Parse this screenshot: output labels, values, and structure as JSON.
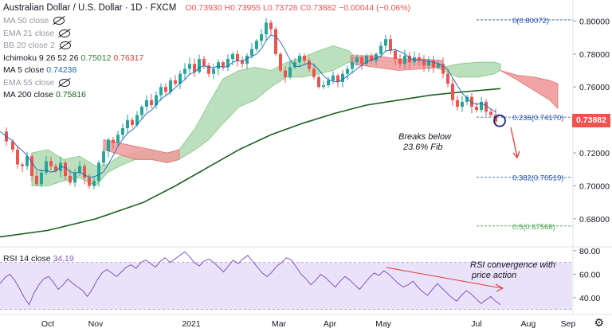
{
  "header": {
    "title": "Australian Dollar / U.S. Dollar · 1D · FXCM",
    "ohlc": "O0.73930 H0.73955 L0.73726 C0.73882 −0.00044 (−0.06%)"
  },
  "legend": [
    {
      "label": "MA 50 close",
      "value": "",
      "muted": true,
      "hidden": true
    },
    {
      "label": "EMA 21 close",
      "value": "",
      "muted": true,
      "hidden": true
    },
    {
      "label": "BB 20 close 2",
      "value": "",
      "muted": true,
      "hidden": true
    },
    {
      "label": "Ichimoku 9 26 52 26",
      "value": "0.75012",
      "value2": "0.76317",
      "muted": false,
      "hidden": false
    },
    {
      "label": "MA 5 close",
      "value": "0.74238",
      "muted": false,
      "hidden": false
    },
    {
      "label": "EMA 55 close",
      "value": "",
      "muted": true,
      "hidden": true
    },
    {
      "label": "MA 200 close",
      "value": "0.75816",
      "muted": false,
      "hidden": false
    }
  ],
  "price_tag": "0.73882",
  "fib": [
    {
      "label": "0(0.80072)",
      "value": 0.80072
    },
    {
      "label": "0.236(0.74170)",
      "value": 0.7417
    },
    {
      "label": "0.382(0.70519)",
      "value": 0.70519
    },
    {
      "label": "0.5(0.67568)",
      "value": 0.67568
    }
  ],
  "annotations": {
    "breaks": [
      "Breaks below",
      "23.6% Fib"
    ],
    "rsi_note": [
      "RSI convergence with",
      "price action"
    ]
  },
  "rsi_label": {
    "name": "RSI 14 close",
    "value": "34.19"
  },
  "icons": {
    "eye": "eye-off-icon",
    "settings": "gear-icon"
  },
  "colors": {
    "up": "#26a69a",
    "down": "#ef5350",
    "ma200": "#1b5e20",
    "cloud_bull": "#a5d6a7",
    "cloud_bear": "#ef9a9a",
    "rsi": "#7e57c2",
    "rsi_band": "#e1d5f7"
  },
  "chart_data": [
    {
      "type": "candlestick",
      "title": "Australian Dollar / U.S. Dollar · 1D · FXCM",
      "x_ticks": [
        "Oct",
        "Nov",
        "2021",
        "Mar",
        "Apr",
        "May",
        "Jul",
        "Aug",
        "Sep"
      ],
      "y_ticks": [
        0.68,
        0.7,
        0.72,
        0.74,
        0.76,
        0.78,
        0.8
      ],
      "y_tick_labels": [
        "0.68000",
        "0.70000",
        "0.72000",
        "0.74000",
        "0.76000",
        "0.78000",
        "0.80000"
      ],
      "ylim": [
        0.664,
        0.806
      ],
      "close_path": [
        [
          0,
          0.733
        ],
        [
          8,
          0.727
        ],
        [
          16,
          0.722
        ],
        [
          22,
          0.713
        ],
        [
          28,
          0.712
        ],
        [
          34,
          0.718
        ],
        [
          40,
          0.706
        ],
        [
          46,
          0.701
        ],
        [
          52,
          0.708
        ],
        [
          58,
          0.715
        ],
        [
          64,
          0.712
        ],
        [
          70,
          0.709
        ],
        [
          76,
          0.714
        ],
        [
          82,
          0.706
        ],
        [
          88,
          0.702
        ],
        [
          94,
          0.708
        ],
        [
          100,
          0.712
        ],
        [
          106,
          0.705
        ],
        [
          112,
          0.7
        ],
        [
          118,
          0.703
        ],
        [
          124,
          0.714
        ],
        [
          130,
          0.721
        ],
        [
          136,
          0.728
        ],
        [
          142,
          0.726
        ],
        [
          148,
          0.731
        ],
        [
          154,
          0.735
        ],
        [
          160,
          0.74
        ],
        [
          166,
          0.737
        ],
        [
          172,
          0.743
        ],
        [
          178,
          0.748
        ],
        [
          184,
          0.752
        ],
        [
          190,
          0.749
        ],
        [
          196,
          0.755
        ],
        [
          202,
          0.76
        ],
        [
          208,
          0.757
        ],
        [
          214,
          0.764
        ],
        [
          220,
          0.762
        ],
        [
          226,
          0.768
        ],
        [
          232,
          0.771
        ],
        [
          238,
          0.774
        ],
        [
          244,
          0.769
        ],
        [
          250,
          0.777
        ],
        [
          256,
          0.773
        ],
        [
          262,
          0.768
        ],
        [
          268,
          0.771
        ],
        [
          274,
          0.775
        ],
        [
          280,
          0.772
        ],
        [
          286,
          0.777
        ],
        [
          292,
          0.78
        ],
        [
          298,
          0.776
        ],
        [
          304,
          0.774
        ],
        [
          310,
          0.779
        ],
        [
          316,
          0.783
        ],
        [
          322,
          0.788
        ],
        [
          328,
          0.792
        ],
        [
          334,
          0.799
        ],
        [
          340,
          0.795
        ],
        [
          346,
          0.78
        ],
        [
          352,
          0.77
        ],
        [
          358,
          0.766
        ],
        [
          364,
          0.772
        ],
        [
          370,
          0.775
        ],
        [
          376,
          0.779
        ],
        [
          382,
          0.776
        ],
        [
          388,
          0.771
        ],
        [
          394,
          0.766
        ],
        [
          400,
          0.76
        ],
        [
          406,
          0.761
        ],
        [
          412,
          0.764
        ],
        [
          418,
          0.767
        ],
        [
          424,
          0.763
        ],
        [
          430,
          0.768
        ],
        [
          436,
          0.771
        ],
        [
          442,
          0.775
        ],
        [
          448,
          0.778
        ],
        [
          454,
          0.774
        ],
        [
          460,
          0.779
        ],
        [
          466,
          0.776
        ],
        [
          472,
          0.78
        ],
        [
          478,
          0.785
        ],
        [
          484,
          0.789
        ],
        [
          490,
          0.782
        ],
        [
          496,
          0.777
        ],
        [
          502,
          0.774
        ],
        [
          508,
          0.779
        ],
        [
          514,
          0.775
        ],
        [
          520,
          0.778
        ],
        [
          526,
          0.776
        ],
        [
          532,
          0.773
        ],
        [
          538,
          0.776
        ],
        [
          544,
          0.772
        ],
        [
          550,
          0.774
        ],
        [
          556,
          0.768
        ],
        [
          562,
          0.762
        ],
        [
          568,
          0.752
        ],
        [
          574,
          0.748
        ],
        [
          580,
          0.751
        ],
        [
          586,
          0.754
        ],
        [
          592,
          0.748
        ],
        [
          598,
          0.746
        ],
        [
          604,
          0.751
        ],
        [
          610,
          0.745
        ],
        [
          616,
          0.743
        ],
        [
          622,
          0.739
        ]
      ],
      "ma200_path": [
        [
          0,
          0.669
        ],
        [
          60,
          0.673
        ],
        [
          120,
          0.68
        ],
        [
          180,
          0.69
        ],
        [
          220,
          0.7
        ],
        [
          260,
          0.711
        ],
        [
          300,
          0.722
        ],
        [
          340,
          0.731
        ],
        [
          380,
          0.738
        ],
        [
          420,
          0.744
        ],
        [
          460,
          0.749
        ],
        [
          500,
          0.752
        ],
        [
          540,
          0.755
        ],
        [
          580,
          0.757
        ],
        [
          628,
          0.759
        ]
      ],
      "cloud_bull": [
        [
          0,
          0.705
        ],
        [
          10,
          0.71
        ],
        [
          20,
          0.716
        ],
        [
          30,
          0.703
        ],
        [
          40,
          0.7
        ],
        [
          50,
          0.703
        ],
        [
          60,
          0.712
        ]
      ],
      "cloud_bull_a": [
        [
          0,
          0.73
        ],
        [
          10,
          0.728
        ],
        [
          20,
          0.725
        ],
        [
          30,
          0.722
        ],
        [
          40,
          0.719
        ],
        [
          50,
          0.715
        ],
        [
          60,
          0.716
        ]
      ],
      "x_label_positions": "computed",
      "rsi": {
        "ylim": [
          27,
          82
        ],
        "y_ticks": [
          40,
          60,
          80
        ],
        "y_tick_labels": [
          "40.00",
          "60.00",
          "80.00"
        ],
        "band": [
          30,
          70
        ],
        "values": [
          52,
          57,
          60,
          55,
          48,
          40,
          34,
          44,
          51,
          56,
          58,
          53,
          47,
          51,
          56,
          52,
          49,
          46,
          41,
          47,
          55,
          61,
          64,
          61,
          58,
          62,
          66,
          68,
          65,
          70,
          72,
          69,
          66,
          71,
          74,
          70,
          73,
          76,
          79,
          75,
          70,
          67,
          71,
          73,
          70,
          66,
          62,
          67,
          72,
          69,
          73,
          76,
          71,
          66,
          61,
          58,
          62,
          67,
          70,
          74,
          72,
          66,
          60,
          56,
          51,
          55,
          60,
          57,
          53,
          49,
          54,
          58,
          55,
          51,
          47,
          52,
          57,
          61,
          59,
          63,
          60,
          56,
          52,
          49,
          51,
          54,
          49,
          45,
          42,
          47,
          52,
          48,
          44,
          40,
          37,
          42,
          46,
          43,
          39,
          35,
          38,
          41,
          37,
          34
        ]
      }
    }
  ]
}
